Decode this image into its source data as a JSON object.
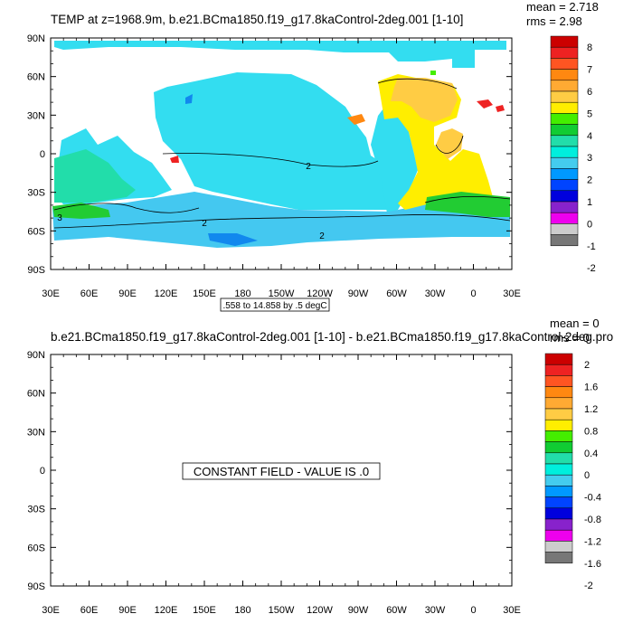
{
  "panels": [
    {
      "title": "TEMP at z=1968.9m, b.e21.BCma1850.f19_g17.8kaControl-2deg.001 [1-10]",
      "mean": "mean = 2.718",
      "rms": "rms = 2.98",
      "info_label": ".558 to 14.858 by .5 degC",
      "colorbar_labels": [
        "8",
        "7",
        "6",
        "5",
        "4",
        "3",
        "2",
        "1",
        "0",
        "-1",
        "-2"
      ],
      "contour_labels": [
        "2",
        "2",
        "2",
        "3"
      ]
    },
    {
      "title": "b.e21.BCma1850.f19_g17.8kaControl-2deg.001 [1-10] - b.e21.BCma1850.f19_g17.8kaControl-2deg.pro",
      "mean": "mean = 0",
      "rms": "rms = 0",
      "constant_label": "CONSTANT FIELD - VALUE IS .0",
      "colorbar_labels": [
        "2",
        "1.6",
        "1.2",
        "0.8",
        "0.4",
        "0",
        "-0.4",
        "-0.8",
        "-1.2",
        "-1.6",
        "-2"
      ]
    }
  ],
  "axes": {
    "y_ticks": [
      "90N",
      "60N",
      "30N",
      "0",
      "30S",
      "60S",
      "90S"
    ],
    "x_ticks": [
      "30E",
      "60E",
      "90E",
      "120E",
      "150E",
      "180",
      "150W",
      "120W",
      "90W",
      "60W",
      "30W",
      "0",
      "30E"
    ]
  },
  "colorbar_colors": [
    "#cc0000",
    "#ee2222",
    "#ff5522",
    "#ff8811",
    "#ffaa33",
    "#ffcc44",
    "#ffee00",
    "#44ee00",
    "#11cc33",
    "#22ddaa",
    "#00eedd",
    "#44ccee",
    "#0099ff",
    "#0044ff",
    "#0000dd",
    "#8822cc",
    "#ee00ee",
    "#cccccc",
    "#777777"
  ],
  "ocean_colors": {
    "cyan": "#33ddf0",
    "light_blue": "#44c8f0",
    "teal": "#22ddaa",
    "green": "#22cc33",
    "yellow": "#ffee00",
    "light_orange": "#ffcc44",
    "blue": "#1188ee"
  }
}
